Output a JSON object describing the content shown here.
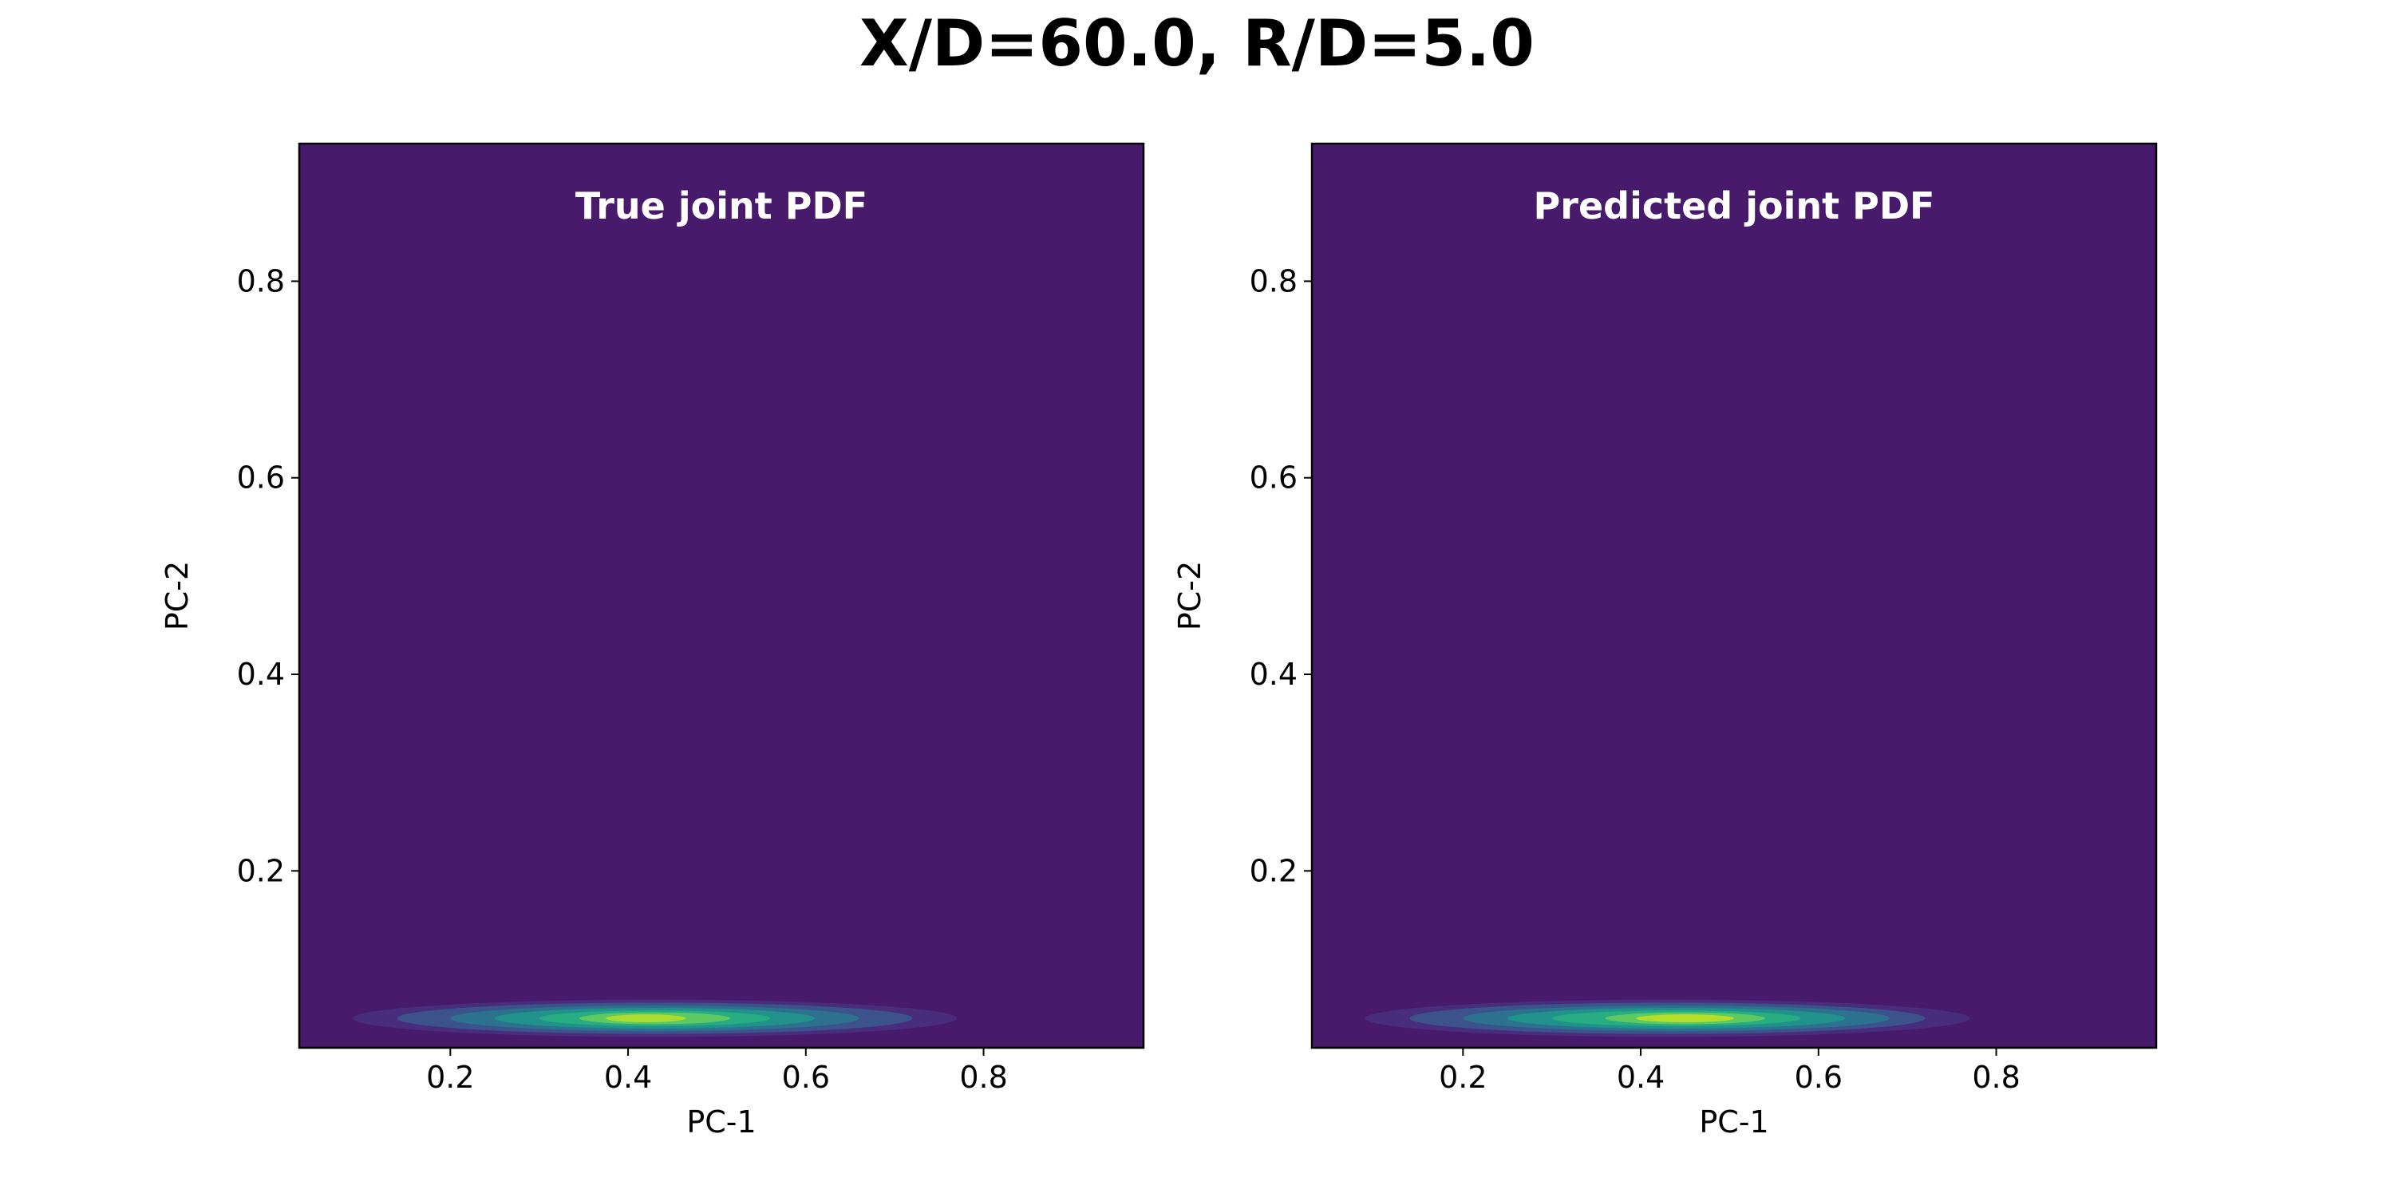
{
  "figure": {
    "suptitle": "X/D=60.0, R/D=5.0"
  },
  "chart_data": [
    {
      "type": "heatmap",
      "title": "True joint PDF",
      "xlabel": "PC-1",
      "ylabel": "PC-2",
      "xlim": [
        0.03,
        0.98
      ],
      "ylim": [
        0.02,
        0.94
      ],
      "xticks": [
        0.2,
        0.4,
        0.6,
        0.8
      ],
      "xtick_labels": [
        "0.2",
        "0.4",
        "0.6",
        "0.8"
      ],
      "yticks": [
        0.2,
        0.4,
        0.6,
        0.8
      ],
      "ytick_labels": [
        "0.2",
        "0.4",
        "0.6",
        "0.8"
      ],
      "colormap": "viridis",
      "background_color": "#481a6c",
      "grid": false,
      "peak": {
        "x": 0.43,
        "y": 0.05
      },
      "contours": [
        {
          "level": 0.05,
          "color": "#472d7b",
          "cx": 0.43,
          "cy": 0.05,
          "rx": 0.34,
          "ry": 0.019
        },
        {
          "level": 0.15,
          "color": "#3b528b",
          "cx": 0.43,
          "cy": 0.05,
          "rx": 0.29,
          "ry": 0.016
        },
        {
          "level": 0.3,
          "color": "#2c728e",
          "cx": 0.43,
          "cy": 0.05,
          "rx": 0.23,
          "ry": 0.013
        },
        {
          "level": 0.45,
          "color": "#21918c",
          "cx": 0.43,
          "cy": 0.05,
          "rx": 0.18,
          "ry": 0.0105
        },
        {
          "level": 0.6,
          "color": "#27ad81",
          "cx": 0.43,
          "cy": 0.05,
          "rx": 0.13,
          "ry": 0.008
        },
        {
          "level": 0.75,
          "color": "#5ec962",
          "cx": 0.43,
          "cy": 0.05,
          "rx": 0.085,
          "ry": 0.006
        },
        {
          "level": 0.9,
          "color": "#aadc32",
          "cx": 0.42,
          "cy": 0.05,
          "rx": 0.045,
          "ry": 0.004
        }
      ]
    },
    {
      "type": "heatmap",
      "title": "Predicted joint PDF",
      "xlabel": "PC-1",
      "ylabel": "PC-2",
      "xlim": [
        0.03,
        0.98
      ],
      "ylim": [
        0.02,
        0.94
      ],
      "xticks": [
        0.2,
        0.4,
        0.6,
        0.8
      ],
      "xtick_labels": [
        "0.2",
        "0.4",
        "0.6",
        "0.8"
      ],
      "yticks": [
        0.2,
        0.4,
        0.6,
        0.8
      ],
      "ytick_labels": [
        "0.2",
        "0.4",
        "0.6",
        "0.8"
      ],
      "colormap": "viridis",
      "background_color": "#481a6c",
      "grid": false,
      "peak": {
        "x": 0.45,
        "y": 0.05
      },
      "contours": [
        {
          "level": 0.05,
          "color": "#472d7b",
          "cx": 0.43,
          "cy": 0.05,
          "rx": 0.34,
          "ry": 0.019
        },
        {
          "level": 0.15,
          "color": "#3b528b",
          "cx": 0.43,
          "cy": 0.05,
          "rx": 0.29,
          "ry": 0.016
        },
        {
          "level": 0.3,
          "color": "#2c728e",
          "cx": 0.44,
          "cy": 0.05,
          "rx": 0.24,
          "ry": 0.013
        },
        {
          "level": 0.45,
          "color": "#21918c",
          "cx": 0.44,
          "cy": 0.05,
          "rx": 0.19,
          "ry": 0.0105
        },
        {
          "level": 0.6,
          "color": "#27ad81",
          "cx": 0.44,
          "cy": 0.05,
          "rx": 0.14,
          "ry": 0.008
        },
        {
          "level": 0.75,
          "color": "#5ec962",
          "cx": 0.45,
          "cy": 0.05,
          "rx": 0.09,
          "ry": 0.006
        },
        {
          "level": 0.9,
          "color": "#b5de2b",
          "cx": 0.45,
          "cy": 0.05,
          "rx": 0.055,
          "ry": 0.004
        }
      ]
    }
  ]
}
